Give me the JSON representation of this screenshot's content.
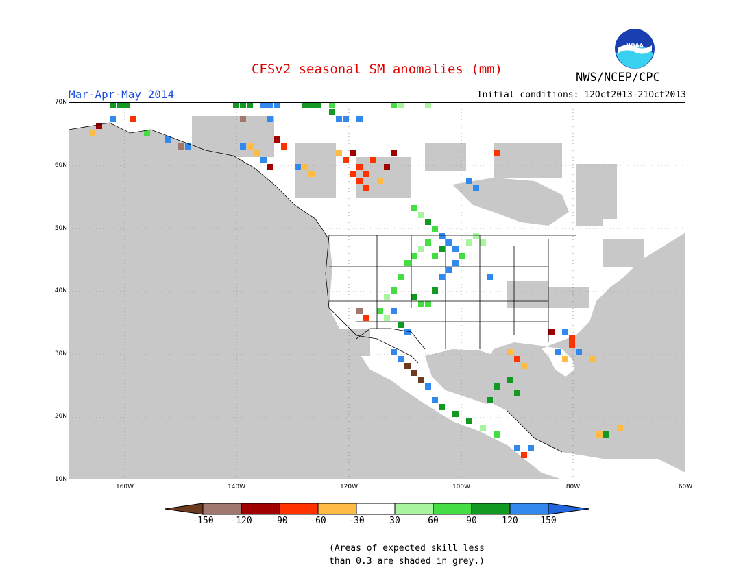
{
  "title": "CFSv2 seasonal SM anomalies (mm)",
  "period": "Mar-Apr-May 2014",
  "organization": "NWS/NCEP/CPC",
  "logo_text": "NOAA",
  "initial_conditions": "Initial conditions: 12Oct2013-21Oct2013",
  "lat_labels": [
    "70N",
    "60N",
    "50N",
    "40N",
    "30N",
    "20N",
    "10N"
  ],
  "lon_labels": [
    "160W",
    "140W",
    "120W",
    "100W",
    "80W",
    "60W"
  ],
  "legend": {
    "labels": [
      "-150",
      "-120",
      "-90",
      "-60",
      "-30",
      "30",
      "60",
      "90",
      "120",
      "150"
    ],
    "colors": [
      "#6b3a1f",
      "#a0786e",
      "#a00000",
      "#ff3300",
      "#ffbb44",
      "#ffffff",
      "#a8f5a0",
      "#44dd44",
      "#119922",
      "#3388ee",
      "#2266dd"
    ]
  },
  "colors": {
    "ocean_grey": "#c8c8c8",
    "land": "#ffffff",
    "title_red": "#e00000",
    "period_blue": "#1c4fe0"
  },
  "note_line1": "(Areas of expected skill less",
  "note_line2": "than 0.3 are shaded in grey.)"
}
